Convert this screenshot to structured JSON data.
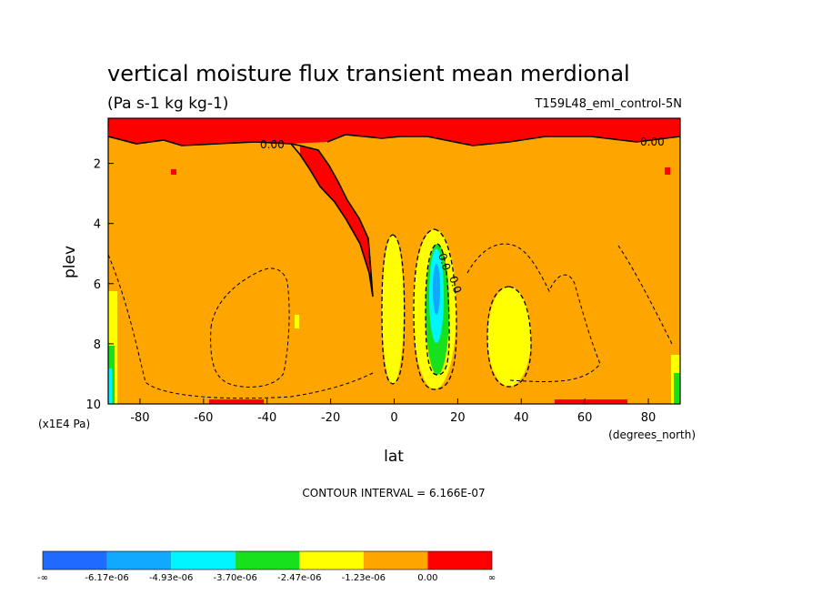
{
  "chart_data": {
    "type": "heatmap",
    "title": "vertical moisture flux transient mean merdional",
    "subtitle": "(Pa s-1 kg kg-1)",
    "run_label": "T159L48_eml_control-5N",
    "xlabel": "lat",
    "x_units": "(degrees_north)",
    "ylabel": "plev",
    "y_units": "(x1E4 Pa)",
    "xlim": [
      -90,
      90
    ],
    "ylim": [
      10,
      0.5
    ],
    "x_ticks": [
      -80,
      -60,
      -40,
      -20,
      0,
      20,
      40,
      60,
      80
    ],
    "y_ticks": [
      2,
      4,
      6,
      8,
      10
    ],
    "contour_interval": "CONTOUR INTERVAL = 6.166E-07",
    "contour_labels": [
      "0.00",
      "0.00",
      "0.0",
      "0.0"
    ],
    "colorbar": {
      "colors": [
        "#1f6bff",
        "#11a8ff",
        "#00f5ff",
        "#17e01d",
        "#ffff00",
        "#ffa500",
        "#ff0000"
      ],
      "labels": [
        "-∞",
        "-6.17e-06",
        "-4.93e-06",
        "-3.70e-06",
        "-2.47e-06",
        "-1.23e-06",
        "0.00",
        "∞"
      ]
    }
  }
}
